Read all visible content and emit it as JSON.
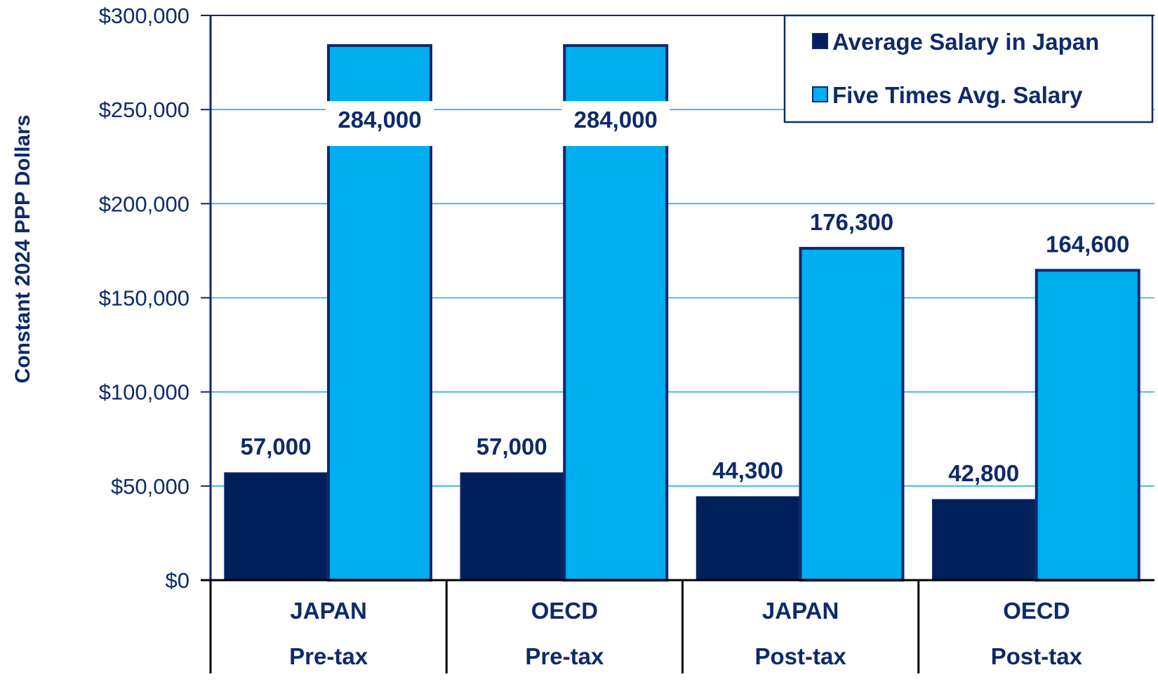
{
  "colors": {
    "series_dark": "#00205b",
    "series_light": "#00adef",
    "outline": "#0e2a6b",
    "grid": "#1bb1d8",
    "text": "#0e2a6b"
  },
  "chart_data": {
    "type": "bar",
    "title": "",
    "ylabel": "Constant 2024 PPP Dollars",
    "xlabel": "",
    "ylim": [
      0,
      300000
    ],
    "yticks": [
      0,
      50000,
      100000,
      150000,
      200000,
      250000,
      300000
    ],
    "ytick_labels": [
      "$0",
      "$50,000",
      "$100,000",
      "$150,000",
      "$200,000",
      "$250,000",
      "$300,000"
    ],
    "grid": true,
    "legend_position": "top-right",
    "categories": [
      {
        "line1": "JAPAN",
        "line2": "Pre-tax"
      },
      {
        "line1": "OECD",
        "line2": "Pre-tax"
      },
      {
        "line1": "JAPAN",
        "line2": "Post-tax"
      },
      {
        "line1": "OECD",
        "line2": "Post-tax"
      }
    ],
    "series": [
      {
        "name": "Average Salary in Japan",
        "color": "#00205b",
        "values": [
          57000,
          57000,
          44300,
          42800
        ],
        "labels": [
          "57,000",
          "57,000",
          "44,300",
          "42,800"
        ]
      },
      {
        "name": "Five Times Avg. Salary",
        "color": "#00adef",
        "values": [
          284000,
          284000,
          176300,
          164600
        ],
        "labels": [
          "284,000",
          "284,000",
          "176,300",
          "164,600"
        ]
      }
    ]
  }
}
